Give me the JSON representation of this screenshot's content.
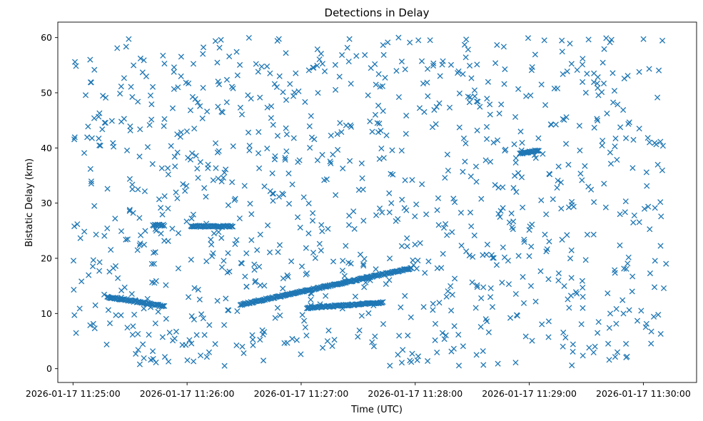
{
  "chart_data": {
    "type": "scatter",
    "title": "Detections in Delay",
    "xlabel": "Time (UTC)",
    "ylabel": "Bistatic Delay (km)",
    "marker": "x",
    "color": "#1f77b4",
    "grid": false,
    "xlim": [
      "2026-01-17 11:24:52",
      "2026-01-17 11:30:28"
    ],
    "ylim": [
      -2.5,
      62.8
    ],
    "x_ticks": [
      "2026-01-17 11:25:00",
      "2026-01-17 11:26:00",
      "2026-01-17 11:27:00",
      "2026-01-17 11:28:00",
      "2026-01-17 11:29:00",
      "2026-01-17 11:30:00"
    ],
    "y_ticks": [
      0,
      10,
      20,
      30,
      40,
      50,
      60
    ],
    "tracks": [
      {
        "start": [
          "2026-01-17 11:25:18",
          13.0
        ],
        "end": [
          "2026-01-17 11:25:48",
          11.3
        ]
      },
      {
        "start": [
          "2026-01-17 11:25:42",
          26.0
        ],
        "end": [
          "2026-01-17 11:25:48",
          26.0
        ]
      },
      {
        "start": [
          "2026-01-17 11:26:02",
          25.8
        ],
        "end": [
          "2026-01-17 11:26:24",
          25.8
        ]
      },
      {
        "start": [
          "2026-01-17 11:26:28",
          11.6
        ],
        "end": [
          "2026-01-17 11:27:58",
          18.2
        ]
      },
      {
        "start": [
          "2026-01-17 11:27:03",
          11.0
        ],
        "end": [
          "2026-01-17 11:27:43",
          12.0
        ]
      },
      {
        "start": [
          "2026-01-17 11:28:55",
          39.0
        ],
        "end": [
          "2026-01-17 11:29:05",
          39.6
        ]
      }
    ],
    "clutter": {
      "count": 1000,
      "x_range": [
        "2026-01-17 11:25:00",
        "2026-01-17 11:30:12"
      ],
      "y_range": [
        0.5,
        60
      ]
    }
  }
}
